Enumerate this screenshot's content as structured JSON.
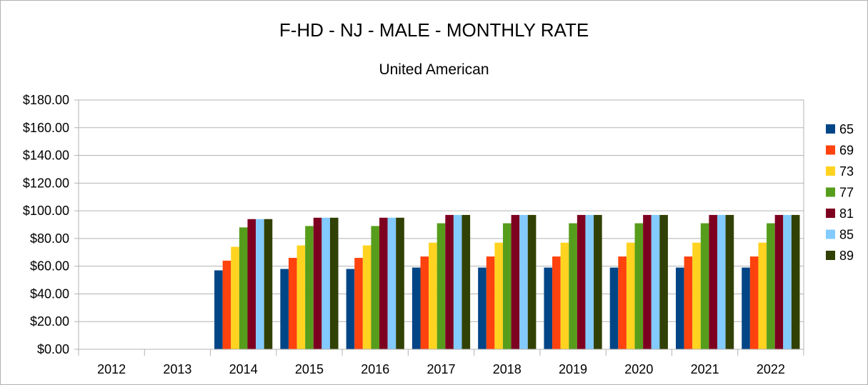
{
  "chart_data": {
    "type": "bar",
    "title": "F-HD - NJ - MALE - MONTHLY RATE",
    "subtitle": "United American",
    "xlabel": "",
    "ylabel": "",
    "ylim": [
      0,
      180
    ],
    "y_step": 20,
    "y_tick_labels": [
      "$0.00",
      "$20.00",
      "$40.00",
      "$60.00",
      "$80.00",
      "$100.00",
      "$120.00",
      "$140.00",
      "$160.00",
      "$180.00"
    ],
    "grid": true,
    "legend_position": "right",
    "categories": [
      "2012",
      "2013",
      "2014",
      "2015",
      "2016",
      "2017",
      "2018",
      "2019",
      "2020",
      "2021",
      "2022"
    ],
    "series": [
      {
        "name": "65",
        "color": "#004586",
        "values": [
          null,
          null,
          57,
          58,
          58,
          59,
          59,
          59,
          59,
          59,
          59
        ]
      },
      {
        "name": "69",
        "color": "#ff420e",
        "values": [
          null,
          null,
          64,
          66,
          66,
          67,
          67,
          67,
          67,
          67,
          67
        ]
      },
      {
        "name": "73",
        "color": "#ffd320",
        "values": [
          null,
          null,
          74,
          75,
          75,
          77,
          77,
          77,
          77,
          77,
          77
        ]
      },
      {
        "name": "77",
        "color": "#579d1c",
        "values": [
          null,
          null,
          88,
          89,
          89,
          91,
          91,
          91,
          91,
          91,
          91
        ]
      },
      {
        "name": "81",
        "color": "#7e0021",
        "values": [
          null,
          null,
          94,
          95,
          95,
          97,
          97,
          97,
          97,
          97,
          97
        ]
      },
      {
        "name": "85",
        "color": "#83caff",
        "values": [
          null,
          null,
          94,
          95,
          95,
          97,
          97,
          97,
          97,
          97,
          97
        ]
      },
      {
        "name": "89",
        "color": "#314004",
        "values": [
          null,
          null,
          94,
          95,
          95,
          97,
          97,
          97,
          97,
          97,
          97
        ]
      }
    ]
  }
}
